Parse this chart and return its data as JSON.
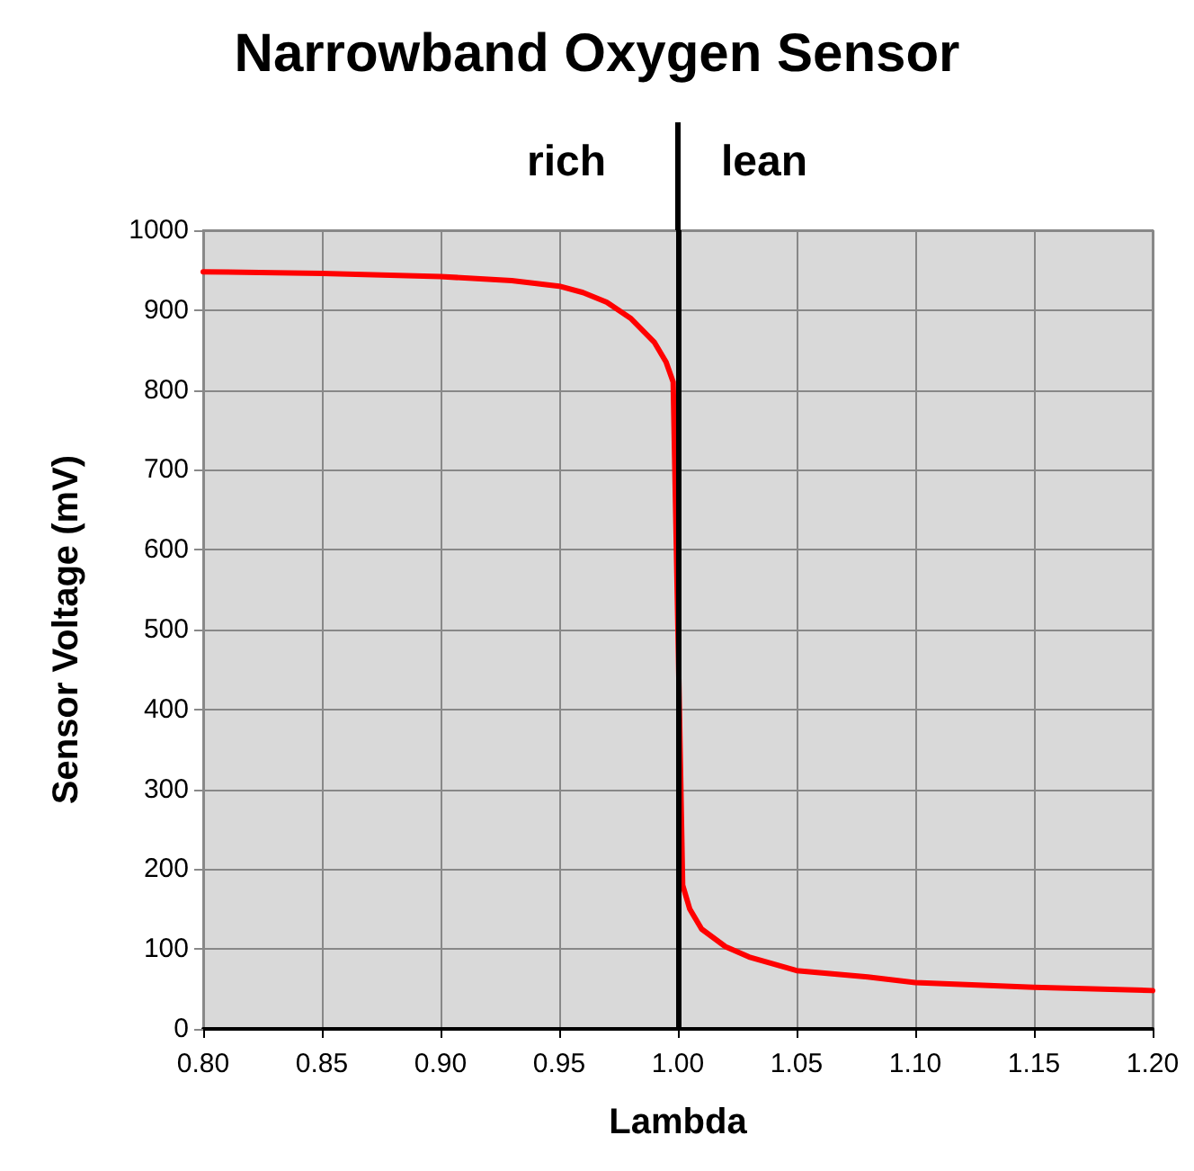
{
  "chart_data": {
    "type": "line",
    "title": "Narrowband Oxygen Sensor",
    "xlabel": "Lambda",
    "ylabel": "Sensor Voltage (mV)",
    "annotations": [
      "rich",
      "lean"
    ],
    "x": [
      0.8,
      0.85,
      0.9,
      0.93,
      0.95,
      0.96,
      0.97,
      0.98,
      0.99,
      0.995,
      0.998,
      1.0,
      1.002,
      1.005,
      1.01,
      1.02,
      1.03,
      1.05,
      1.08,
      1.1,
      1.15,
      1.2
    ],
    "series": [
      {
        "color": "#ff0000",
        "values": [
          948,
          946,
          942,
          937,
          930,
          922,
          910,
          890,
          860,
          835,
          810,
          500,
          180,
          150,
          125,
          103,
          90,
          73,
          65,
          58,
          52,
          48
        ]
      }
    ],
    "xlim": [
      0.8,
      1.2
    ],
    "ylim": [
      0,
      1000
    ],
    "xticks": [
      {
        "value": 0.8,
        "label": "0.80"
      },
      {
        "value": 0.85,
        "label": "0.85"
      },
      {
        "value": 0.9,
        "label": "0.90"
      },
      {
        "value": 0.95,
        "label": "0.95"
      },
      {
        "value": 1.0,
        "label": "1.00"
      },
      {
        "value": 1.05,
        "label": "1.05"
      },
      {
        "value": 1.1,
        "label": "1.10"
      },
      {
        "value": 1.15,
        "label": "1.15"
      },
      {
        "value": 1.2,
        "label": "1.20"
      }
    ],
    "yticks": [
      0,
      100,
      200,
      300,
      400,
      500,
      600,
      700,
      800,
      900,
      1000
    ],
    "ref_lines": [
      {
        "axis": "x",
        "value": 1.0,
        "color": "#000000"
      }
    ],
    "grid": true,
    "marker": "none",
    "line_style": "solid"
  }
}
